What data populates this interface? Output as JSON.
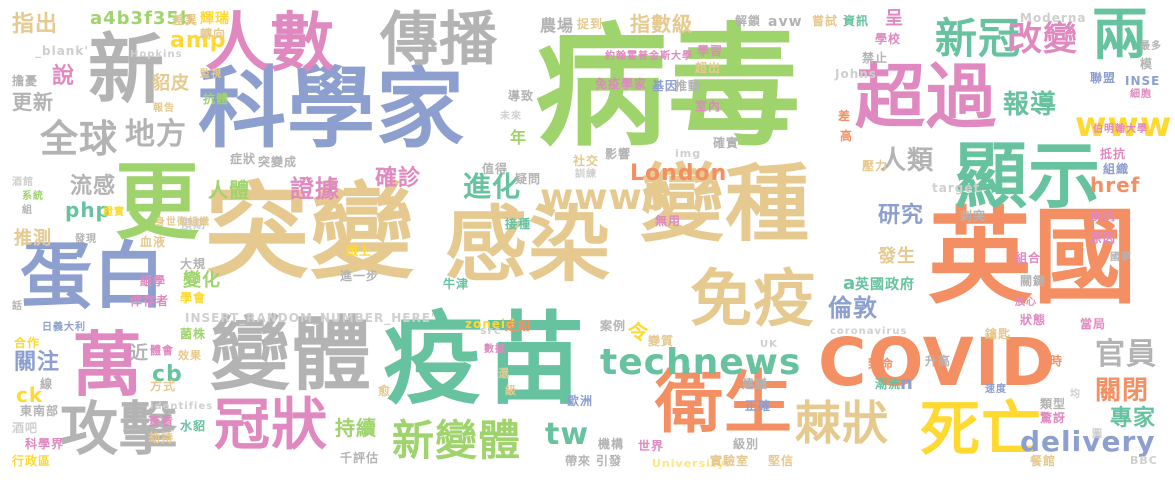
{
  "image_type": "word cloud",
  "words": [
    {
      "text": "病毒",
      "color": "#9fd36b"
    },
    {
      "text": "科學家",
      "color": "#8c9fcf"
    },
    {
      "text": "突變",
      "color": "#e6c98f"
    },
    {
      "text": "感染",
      "color": "#e6c98f"
    },
    {
      "text": "變種",
      "color": "#e6c98f"
    },
    {
      "text": "英國",
      "color": "#f48f63"
    },
    {
      "text": "疫苗",
      "color": "#66c29f"
    },
    {
      "text": "COVID",
      "color": "#f48f63"
    },
    {
      "text": "變體",
      "color": "#b3b3b3"
    },
    {
      "text": "人數",
      "color": "#e088c0"
    },
    {
      "text": "傳播",
      "color": "#b3b3b3"
    },
    {
      "text": "超過",
      "color": "#e088c0"
    },
    {
      "text": "顯示",
      "color": "#66c29f"
    },
    {
      "text": "衛生",
      "color": "#f48f63"
    },
    {
      "text": "免疫",
      "color": "#e6c98f"
    },
    {
      "text": "蛋白",
      "color": "#8c9fcf"
    },
    {
      "text": "萬",
      "color": "#e088c0"
    },
    {
      "text": "新",
      "color": "#b3b3b3"
    },
    {
      "text": "更",
      "color": "#9fd36b"
    },
    {
      "text": "冠狀",
      "color": "#e088c0"
    },
    {
      "text": "攻擊",
      "color": "#b3b3b3"
    },
    {
      "text": "死亡",
      "color": "#ffd92f"
    },
    {
      "text": "棘狀",
      "color": "#e6c98f"
    },
    {
      "text": "新變體",
      "color": "#9fd36b"
    },
    {
      "text": "technews",
      "color": "#66c29f"
    },
    {
      "text": "www5",
      "color": "#e6c98f"
    },
    {
      "text": "全球",
      "color": "#b3b3b3"
    },
    {
      "text": "新冠",
      "color": "#66c29f"
    },
    {
      "text": "改變",
      "color": "#e088c0"
    },
    {
      "text": "兩",
      "color": "#66c29f"
    },
    {
      "text": "www",
      "color": "#ffd92f"
    },
    {
      "text": "報導",
      "color": "#66c29f"
    },
    {
      "text": "delivery",
      "color": "#8c9fcf"
    },
    {
      "text": "官員",
      "color": "#b3b3b3"
    },
    {
      "text": "關閉",
      "color": "#f48f63"
    },
    {
      "text": "專家",
      "color": "#66c29f"
    },
    {
      "text": "地方",
      "color": "#b3b3b3"
    },
    {
      "text": "流感",
      "color": "#b3b3b3"
    },
    {
      "text": "進化",
      "color": "#66c29f"
    },
    {
      "text": "人體",
      "color": "#9fd36b"
    },
    {
      "text": "證據",
      "color": "#e088c0"
    },
    {
      "text": "確診",
      "color": "#e088c0"
    },
    {
      "text": "London",
      "color": "#f48f63"
    },
    {
      "text": "人類",
      "color": "#b3b3b3"
    },
    {
      "text": "研究",
      "color": "#8c9fcf"
    },
    {
      "text": "倫敦",
      "color": "#8c9fcf"
    },
    {
      "text": "tw",
      "color": "#66c29f"
    },
    {
      "text": "持續",
      "color": "#9fd36b"
    },
    {
      "text": "a4b3f35b",
      "color": "#9fd36b"
    },
    {
      "text": "amp",
      "color": "#ffd92f"
    },
    {
      "text": "php",
      "color": "#66c29f"
    },
    {
      "text": "cb",
      "color": "#66c29f"
    },
    {
      "text": "指出",
      "color": "#e6c98f"
    },
    {
      "text": "說",
      "color": "#e088c0"
    },
    {
      "text": "更新",
      "color": "#b3b3b3"
    },
    {
      "text": "關注",
      "color": "#8c9fcf"
    },
    {
      "text": "推測",
      "color": "#e6c98f"
    },
    {
      "text": "農場",
      "color": "#b3b3b3"
    },
    {
      "text": "指數級",
      "color": "#e6c98f"
    },
    {
      "text": "貂皮",
      "color": "#e6c98f"
    },
    {
      "text": "發生",
      "color": "#e6c98f"
    },
    {
      "text": "href",
      "color": "#f48f63"
    },
    {
      "text": "ck",
      "color": "#ffd92f"
    },
    {
      "text": "令",
      "color": "#ffd92f"
    },
    {
      "text": "年",
      "color": "#9fd36b"
    },
    {
      "text": "n",
      "color": "#8c9fcf"
    },
    {
      "text": "a",
      "color": "#66c29f"
    },
    {
      "text": "呈",
      "color": "#e088c0"
    },
    {
      "text": "近",
      "color": "#b3b3b3"
    },
    {
      "text": "英國政府",
      "color": "#66c29f"
    },
    {
      "text": "變化",
      "color": "#9fd36b"
    },
    {
      "text": "INSERT_RANDOM_NUMBER_HERE'",
      "color": "#cfcfcf"
    },
    {
      "text": "Moderna",
      "color": "#cfcfcf"
    },
    {
      "text": "_blank'",
      "color": "#cfcfcf"
    },
    {
      "text": "Hopkins",
      "color": "#cfcfcf"
    },
    {
      "text": "Johns",
      "color": "#cfcfcf"
    },
    {
      "text": "UK",
      "color": "#cfcfcf"
    },
    {
      "text": "img",
      "color": "#cfcfcf"
    },
    {
      "text": "src",
      "color": "#cfcfcf"
    },
    {
      "text": "target",
      "color": "#cfcfcf"
    },
    {
      "text": "coronavirus",
      "color": "#cfcfcf"
    },
    {
      "text": "University",
      "color": "#ffe680"
    },
    {
      "text": "BBC",
      "color": "#cfcfcf"
    },
    {
      "text": "avw",
      "color": "#b3b3b3"
    },
    {
      "text": "zoneid",
      "color": "#ffd92f"
    },
    {
      "text": "identifies",
      "color": "#cfcfcf"
    },
    {
      "text": "輝瑞",
      "color": "#ffd92f"
    },
    {
      "text": "轉向",
      "color": "#e6c98f"
    },
    {
      "text": "差異",
      "color": "#e6c98f"
    },
    {
      "text": "捉到",
      "color": "#e6c98f"
    },
    {
      "text": "解鎖",
      "color": "#b3b3b3"
    },
    {
      "text": "嘗試",
      "color": "#e6c98f"
    },
    {
      "text": "資訊",
      "color": "#66c29f"
    },
    {
      "text": "學校",
      "color": "#e088c0"
    },
    {
      "text": "最多",
      "color": "#b3b3b3"
    },
    {
      "text": "約翰霍普金斯大學",
      "color": "#e088c0"
    },
    {
      "text": "學習",
      "color": "#e088c0"
    },
    {
      "text": "超出",
      "color": "#e6c98f"
    },
    {
      "text": "免疫學家",
      "color": "#e088c0"
    },
    {
      "text": "基因",
      "color": "#8c9fcf"
    },
    {
      "text": "推動",
      "color": "#b3b3b3"
    },
    {
      "text": "禁止",
      "color": "#b3b3b3"
    },
    {
      "text": "模",
      "color": "#b3b3b3"
    },
    {
      "text": "聯盟",
      "color": "#8c9fcf"
    },
    {
      "text": "INSE",
      "color": "#8c9fcf"
    },
    {
      "text": "細胞",
      "color": "#e088c0"
    },
    {
      "text": "擔憂",
      "color": "#b3b3b3"
    },
    {
      "text": "監視",
      "color": "#e6c98f"
    },
    {
      "text": "抗體",
      "color": "#9fd36b"
    },
    {
      "text": "報告",
      "color": "#e6c98f"
    },
    {
      "text": "導致",
      "color": "#b3b3b3"
    },
    {
      "text": "未來",
      "color": "#cfcfcf"
    },
    {
      "text": "室內",
      "color": "#e088c0"
    },
    {
      "text": "差",
      "color": "#f48f63"
    },
    {
      "text": "伯明翰大學",
      "color": "#e088c0"
    },
    {
      "text": "抵抗",
      "color": "#e088c0"
    },
    {
      "text": "組織",
      "color": "#8c9fcf"
    },
    {
      "text": "確實",
      "color": "#b3b3b3"
    },
    {
      "text": "高",
      "color": "#f48f63"
    },
    {
      "text": "壓力",
      "color": "#e6c98f"
    },
    {
      "text": "影響",
      "color": "#b3b3b3"
    },
    {
      "text": "疑問",
      "color": "#b3b3b3"
    },
    {
      "text": "社交",
      "color": "#e6c98f"
    },
    {
      "text": "訓練",
      "color": "#cfcfcf"
    },
    {
      "text": "值得",
      "color": "#b3b3b3"
    },
    {
      "text": "症狀",
      "color": "#b3b3b3"
    },
    {
      "text": "突變成",
      "color": "#b3b3b3"
    },
    {
      "text": "酒館",
      "color": "#cfcfcf"
    },
    {
      "text": "系統",
      "color": "#9fd36b"
    },
    {
      "text": "組",
      "color": "#b3b3b3"
    },
    {
      "text": "證實",
      "color": "#ffd92f"
    },
    {
      "text": "預期",
      "color": "#cfcfcf"
    },
    {
      "text": "發現",
      "color": "#b3b3b3"
    },
    {
      "text": "接種",
      "color": "#66c29f"
    },
    {
      "text": "無用",
      "color": "#e088c0"
    },
    {
      "text": "刺突",
      "color": "#b3b3b3"
    },
    {
      "text": "疾病",
      "color": "#e088c0"
    },
    {
      "text": "原因",
      "color": "#e088c0"
    },
    {
      "text": "國家",
      "color": "#b3b3b3"
    },
    {
      "text": "血液",
      "color": "#e6c98f"
    },
    {
      "text": "身世衛組織",
      "color": "#e6c98f"
    },
    {
      "text": "跟上",
      "color": "#ffd92f"
    },
    {
      "text": "組合",
      "color": "#e088c0"
    },
    {
      "text": "關鍵",
      "color": "#b3b3b3"
    },
    {
      "text": "大規",
      "color": "#b3b3b3"
    },
    {
      "text": "組學",
      "color": "#e088c0"
    },
    {
      "text": "進一步",
      "color": "#b3b3b3"
    },
    {
      "text": "牛津",
      "color": "#66c29f"
    },
    {
      "text": "放心",
      "color": "#e088c0"
    },
    {
      "text": "倖存者",
      "color": "#e088c0"
    },
    {
      "text": "學會",
      "color": "#ffd92f"
    },
    {
      "text": "話",
      "color": "#b3b3b3"
    },
    {
      "text": "狀態",
      "color": "#e088c0"
    },
    {
      "text": "當局",
      "color": "#e088c0"
    },
    {
      "text": "日義大利",
      "color": "#8c9fcf"
    },
    {
      "text": "菌株",
      "color": "#9fd36b"
    },
    {
      "text": "定期",
      "color": "#f48f63"
    },
    {
      "text": "案例",
      "color": "#b3b3b3"
    },
    {
      "text": "鑰匙",
      "color": "#e6c98f"
    },
    {
      "text": "合作",
      "color": "#ffd92f"
    },
    {
      "text": "體會",
      "color": "#e088c0"
    },
    {
      "text": "效果",
      "color": "#e6c98f"
    },
    {
      "text": "數據",
      "color": "#e088c0"
    },
    {
      "text": "變質",
      "color": "#e6c98f"
    },
    {
      "text": "致命",
      "color": "#f48f63"
    },
    {
      "text": "潮流",
      "color": "#66c29f"
    },
    {
      "text": "升高",
      "color": "#b3b3b3"
    },
    {
      "text": "時",
      "color": "#f48f63"
    },
    {
      "text": "線",
      "color": "#b3b3b3"
    },
    {
      "text": "方式",
      "color": "#e6c98f"
    },
    {
      "text": "還",
      "color": "#e6c98f"
    },
    {
      "text": "級",
      "color": "#e6c98f"
    },
    {
      "text": "建議",
      "color": "#b3b3b3"
    },
    {
      "text": "速度",
      "color": "#8c9fcf"
    },
    {
      "text": "類型",
      "color": "#b3b3b3"
    },
    {
      "text": "驚訝",
      "color": "#e088c0"
    },
    {
      "text": "東南部",
      "color": "#b3b3b3"
    },
    {
      "text": "查看",
      "color": "#e088c0"
    },
    {
      "text": "愈",
      "color": "#e6c98f"
    },
    {
      "text": "歐洲",
      "color": "#8c9fcf"
    },
    {
      "text": "正確",
      "color": "#8c9fcf"
    },
    {
      "text": "均",
      "color": "#cfcfcf"
    },
    {
      "text": "水貂",
      "color": "#66c29f"
    },
    {
      "text": "酒吧",
      "color": "#cfcfcf"
    },
    {
      "text": "劫持",
      "color": "#e6c98f"
    },
    {
      "text": "機構",
      "color": "#b3b3b3"
    },
    {
      "text": "世界",
      "color": "#e088c0"
    },
    {
      "text": "級別",
      "color": "#b3b3b3"
    },
    {
      "text": "圖",
      "color": "#cfcfcf"
    },
    {
      "text": "科學界",
      "color": "#e088c0"
    },
    {
      "text": "千評估",
      "color": "#b3b3b3"
    },
    {
      "text": "帶來",
      "color": "#b3b3b3"
    },
    {
      "text": "引發",
      "color": "#b3b3b3"
    },
    {
      "text": "實驗室",
      "color": "#e6c98f"
    },
    {
      "text": "堅信",
      "color": "#e6c98f"
    },
    {
      "text": "餐館",
      "color": "#e6c98f"
    },
    {
      "text": "行政區",
      "color": "#ffd92f"
    }
  ]
}
